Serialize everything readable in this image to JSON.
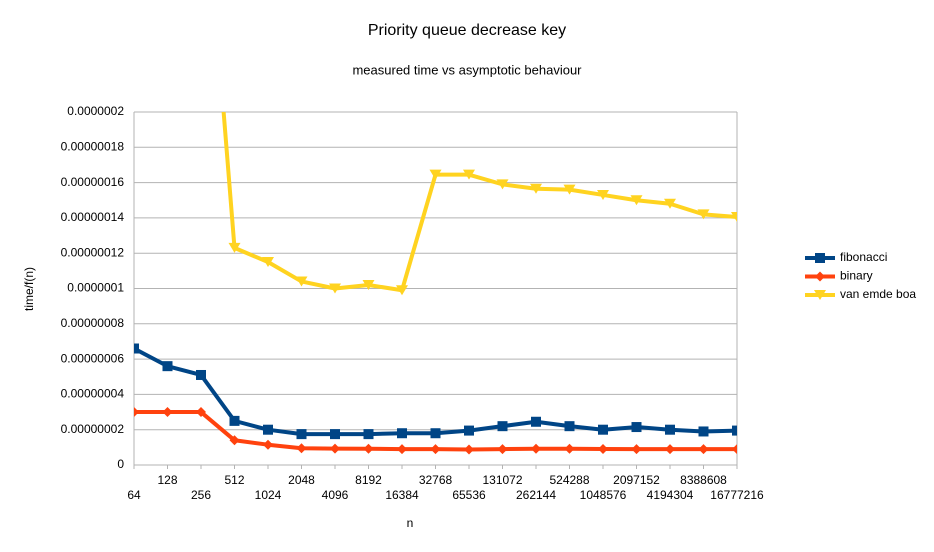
{
  "chart_data": {
    "type": "line",
    "title": "Priority queue decrease key",
    "subtitle": "measured time vs asymptotic behaviour",
    "x_label": "n",
    "y_label": "time/f(n)",
    "categories": [
      "64",
      "128",
      "256",
      "512",
      "1024",
      "2048",
      "4096",
      "8192",
      "16384",
      "32768",
      "65536",
      "131072",
      "262144",
      "524288",
      "1048576",
      "2097152",
      "4194304",
      "8388608",
      "16777216"
    ],
    "series": [
      {
        "name": "fibonacci",
        "color": "#004586",
        "marker": "square",
        "values": [
          6.6e-08,
          5.6e-08,
          5.1e-08,
          2.5e-08,
          2e-08,
          1.75e-08,
          1.75e-08,
          1.75e-08,
          1.8e-08,
          1.8e-08,
          1.95e-08,
          2.2e-08,
          2.45e-08,
          2.2e-08,
          2e-08,
          2.15e-08,
          2e-08,
          1.9e-08,
          1.95e-08
        ]
      },
      {
        "name": "binary",
        "color": "#ff420e",
        "marker": "diamond",
        "values": [
          3e-08,
          3e-08,
          3e-08,
          1.4e-08,
          1.15e-08,
          9.5e-09,
          9.3e-09,
          9.2e-09,
          9e-09,
          9e-09,
          8.8e-09,
          9e-09,
          9.2e-09,
          9.2e-09,
          9.1e-09,
          9e-09,
          9e-09,
          9e-09,
          9e-09
        ]
      },
      {
        "name": "van emde boa",
        "color": "#ffd320",
        "marker": "triangle-down",
        "values": [
          null,
          null,
          3.6e-07,
          1.23e-07,
          1.15e-07,
          1.04e-07,
          1e-07,
          1.02e-07,
          9.9e-08,
          1.645e-07,
          1.645e-07,
          1.59e-07,
          1.565e-07,
          1.56e-07,
          1.53e-07,
          1.5e-07,
          1.48e-07,
          1.42e-07,
          1.405e-07
        ]
      }
    ],
    "ylim": [
      0,
      2e-07
    ],
    "yticks": [
      0,
      {
        "value": 2e-08,
        "label": "0.00000002"
      },
      {
        "value": 4e-08,
        "label": "0.00000004"
      },
      {
        "value": 6e-08,
        "label": "0.00000006"
      },
      {
        "value": 8e-08,
        "label": "0.00000008"
      },
      {
        "value": 1e-07,
        "label": "0.0000001"
      },
      {
        "value": 1.2e-07,
        "label": "0.00000012"
      },
      {
        "value": 1.4e-07,
        "label": "0.00000014"
      },
      {
        "value": 1.6e-07,
        "label": "0.00000016"
      },
      {
        "value": 1.8e-07,
        "label": "0.00000018"
      },
      {
        "value": 2e-07,
        "label": "0.0000002"
      }
    ],
    "grid": true,
    "legend": "right"
  }
}
